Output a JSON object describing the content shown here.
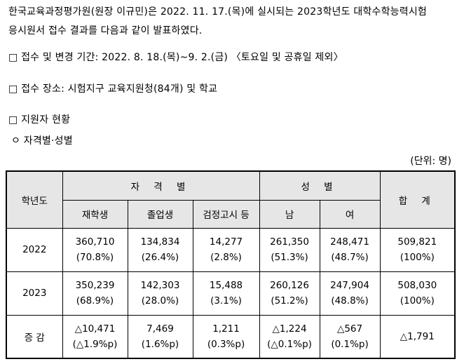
{
  "intro": {
    "line1": "한국교육과정평가원(원장 이규민)은 2022. 11. 17.(목)에 실시되는 2023학년도 대학수학능력시험",
    "line2": "응시원서 접수 결과를 다음과 같이 발표하였다."
  },
  "bullets": [
    {
      "marker": "□",
      "text": "접수 및 변경 기간: 2022. 8. 18.(목)~9. 2.(금) 〈토요일 및 공휴일 제외〉"
    },
    {
      "marker": "□",
      "text": "접수 장소: 시험지구 교육지원청(84개) 및 학교"
    },
    {
      "marker": "□",
      "text": "지원자 현황"
    }
  ],
  "sub_bullet": {
    "marker": "ㅇ",
    "text": "자격별·성별"
  },
  "unit_note": "(단위: 명)",
  "table": {
    "headers": {
      "year": "학년도",
      "qualification_group": "자 격 별",
      "gender_group": "성 별",
      "total": "합 계",
      "enrolled": "재학생",
      "graduate": "졸업생",
      "ged": "검정고시 등",
      "male": "남",
      "female": "여"
    },
    "rows": [
      {
        "label": "2022",
        "enrolled": [
          "360,710",
          "(70.8%)"
        ],
        "graduate": [
          "134,834",
          "(26.4%)"
        ],
        "ged": [
          "14,277",
          "(2.8%)"
        ],
        "male": [
          "261,350",
          "(51.3%)"
        ],
        "female": [
          "248,471",
          "(48.7%)"
        ],
        "total": [
          "509,821",
          "(100%)"
        ]
      },
      {
        "label": "2023",
        "enrolled": [
          "350,239",
          "(68.9%)"
        ],
        "graduate": [
          "142,303",
          "(28.0%)"
        ],
        "ged": [
          "15,488",
          "(3.1%)"
        ],
        "male": [
          "260,126",
          "(51.2%)"
        ],
        "female": [
          "247,904",
          "(48.8%)"
        ],
        "total": [
          "508,030",
          "(100%)"
        ]
      },
      {
        "label": "증 감",
        "enrolled": [
          "△10,471",
          "(△1.9%p)"
        ],
        "graduate": [
          "7,469",
          "(1.6%p)"
        ],
        "ged": [
          "1,211",
          "(0.3%p)"
        ],
        "male": [
          "△1,224",
          "(△0.1%p)"
        ],
        "female": [
          "△567",
          "(0.1%p)"
        ],
        "total": [
          "△1,791",
          ""
        ]
      }
    ]
  }
}
